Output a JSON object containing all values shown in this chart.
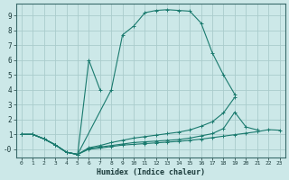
{
  "xlabel": "Humidex (Indice chaleur)",
  "background_color": "#cce8e8",
  "grid_color": "#aacccc",
  "line_color": "#1a7a6e",
  "xlim": [
    -0.5,
    23.5
  ],
  "ylim": [
    -0.55,
    9.8
  ],
  "yticks": [
    0,
    1,
    2,
    3,
    4,
    5,
    6,
    7,
    8,
    9
  ],
  "ytick_labels": [
    "-0",
    "1",
    "2",
    "3",
    "4",
    "5",
    "6",
    "7",
    "8",
    "9"
  ],
  "xticks": [
    0,
    1,
    2,
    3,
    4,
    5,
    6,
    7,
    8,
    9,
    10,
    11,
    12,
    13,
    14,
    15,
    16,
    17,
    18,
    19,
    20,
    21,
    22,
    23
  ],
  "curve1_x": [
    0,
    1,
    2,
    3,
    4,
    5,
    8,
    9,
    10,
    11,
    12,
    13,
    14,
    15,
    16,
    17,
    18,
    19
  ],
  "curve1_y": [
    1.0,
    1.0,
    0.7,
    0.3,
    -0.2,
    -0.35,
    4.0,
    7.7,
    8.3,
    9.2,
    9.35,
    9.4,
    9.35,
    9.3,
    8.5,
    6.5,
    5.0,
    3.7
  ],
  "curve2_x": [
    0,
    1,
    2,
    3,
    4,
    5,
    6,
    7
  ],
  "curve2_y": [
    1.0,
    1.0,
    0.7,
    0.3,
    -0.2,
    -0.35,
    6.0,
    4.0
  ],
  "curve3_x": [
    0,
    1,
    2,
    3,
    4,
    5,
    6,
    7,
    8,
    9,
    10,
    11,
    12,
    13,
    14,
    15,
    16,
    17,
    18,
    19
  ],
  "curve3_y": [
    1.0,
    1.0,
    0.7,
    0.3,
    -0.2,
    -0.35,
    0.1,
    0.25,
    0.45,
    0.6,
    0.75,
    0.85,
    0.95,
    1.05,
    1.15,
    1.3,
    1.55,
    1.85,
    2.45,
    3.5
  ],
  "curve4_x": [
    0,
    1,
    2,
    3,
    4,
    5,
    6,
    7,
    8,
    9,
    10,
    11,
    12,
    13,
    14,
    15,
    16,
    17,
    18,
    19,
    20,
    21
  ],
  "curve4_y": [
    1.0,
    1.0,
    0.7,
    0.3,
    -0.2,
    -0.35,
    0.05,
    0.15,
    0.25,
    0.35,
    0.45,
    0.5,
    0.55,
    0.6,
    0.65,
    0.75,
    0.9,
    1.05,
    1.4,
    2.5,
    1.5,
    1.3
  ],
  "curve5_x": [
    0,
    1,
    2,
    3,
    4,
    5,
    6,
    7,
    8,
    9,
    10,
    11,
    12,
    13,
    14,
    15,
    16,
    17,
    18,
    19,
    20,
    21,
    22,
    23
  ],
  "curve5_y": [
    1.0,
    1.0,
    0.7,
    0.3,
    -0.2,
    -0.35,
    0.0,
    0.08,
    0.18,
    0.28,
    0.33,
    0.38,
    0.43,
    0.48,
    0.53,
    0.6,
    0.68,
    0.78,
    0.88,
    0.98,
    1.08,
    1.18,
    1.32,
    1.28
  ]
}
